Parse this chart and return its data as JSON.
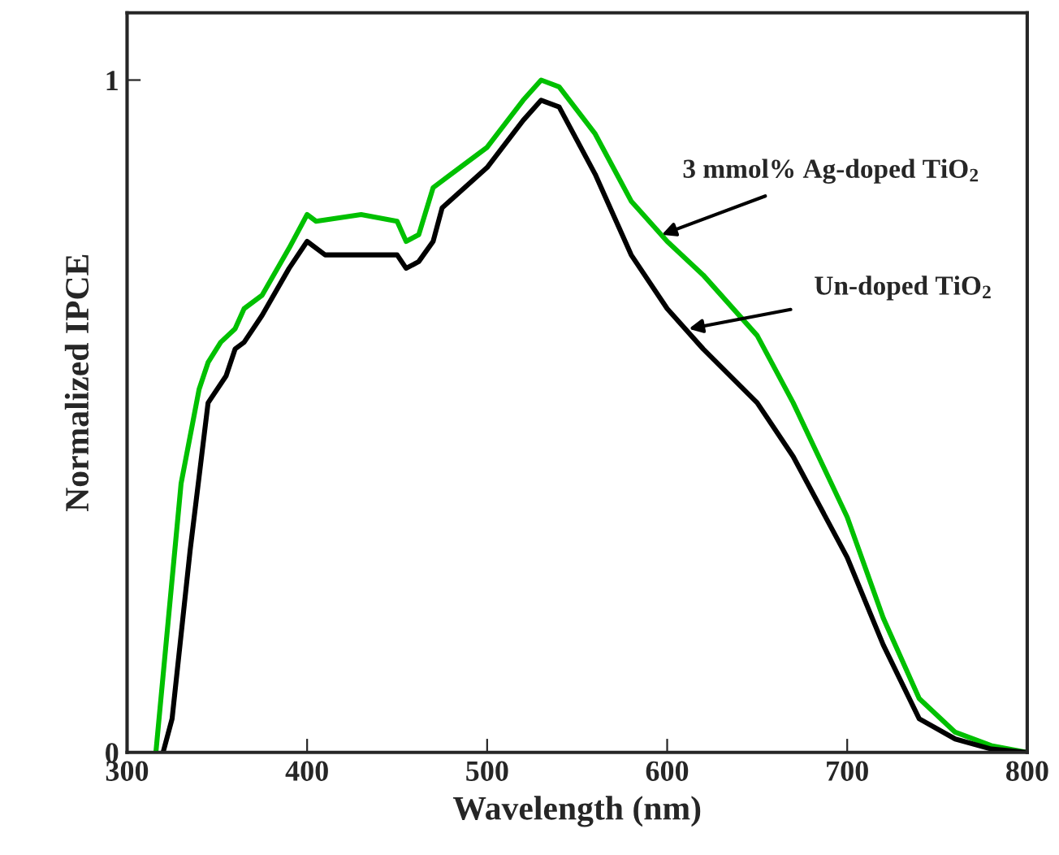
{
  "chart_data": {
    "type": "line",
    "xlabel": "Wavelength (nm)",
    "ylabel": "Normalized IPCE",
    "xlim": [
      300,
      800
    ],
    "xticks": [
      300,
      400,
      500,
      600,
      700,
      800
    ],
    "ylim": [
      0,
      1.1
    ],
    "yticks": [
      0,
      1
    ],
    "grid": false,
    "legend": false,
    "marker": "none",
    "line_style": "solid",
    "series": [
      {
        "color": "#00c000",
        "x": [
          316,
          323,
          330,
          340,
          345,
          352,
          360,
          365,
          375,
          390,
          400,
          405,
          430,
          450,
          455,
          462,
          470,
          480,
          500,
          520,
          530,
          540,
          560,
          580,
          600,
          620,
          650,
          670,
          700,
          720,
          740,
          760,
          780,
          800
        ],
        "values": [
          0,
          0.2,
          0.4,
          0.54,
          0.58,
          0.61,
          0.63,
          0.66,
          0.68,
          0.75,
          0.8,
          0.79,
          0.8,
          0.79,
          0.76,
          0.77,
          0.84,
          0.86,
          0.9,
          0.97,
          1.0,
          0.99,
          0.92,
          0.82,
          0.76,
          0.71,
          0.62,
          0.52,
          0.35,
          0.2,
          0.08,
          0.03,
          0.01,
          0
        ]
      },
      {
        "color": "#000000",
        "x": [
          320,
          325,
          335,
          345,
          355,
          360,
          365,
          375,
          390,
          400,
          410,
          430,
          450,
          455,
          462,
          470,
          475,
          500,
          520,
          530,
          540,
          560,
          580,
          600,
          620,
          650,
          670,
          700,
          720,
          740,
          760,
          780,
          800
        ],
        "values": [
          0,
          0.05,
          0.3,
          0.52,
          0.56,
          0.6,
          0.61,
          0.65,
          0.72,
          0.76,
          0.74,
          0.74,
          0.74,
          0.72,
          0.73,
          0.76,
          0.81,
          0.87,
          0.94,
          0.97,
          0.96,
          0.86,
          0.74,
          0.66,
          0.6,
          0.52,
          0.44,
          0.29,
          0.16,
          0.05,
          0.02,
          0.005,
          0
        ]
      }
    ],
    "annotations": [
      {
        "text": "3 mmol% Ag-doped TiO$_{2}$",
        "x": 597,
        "y": 0.77
      },
      {
        "text": "Un-doped TiO$_{2}$",
        "x": 612,
        "y": 0.63
      }
    ]
  }
}
